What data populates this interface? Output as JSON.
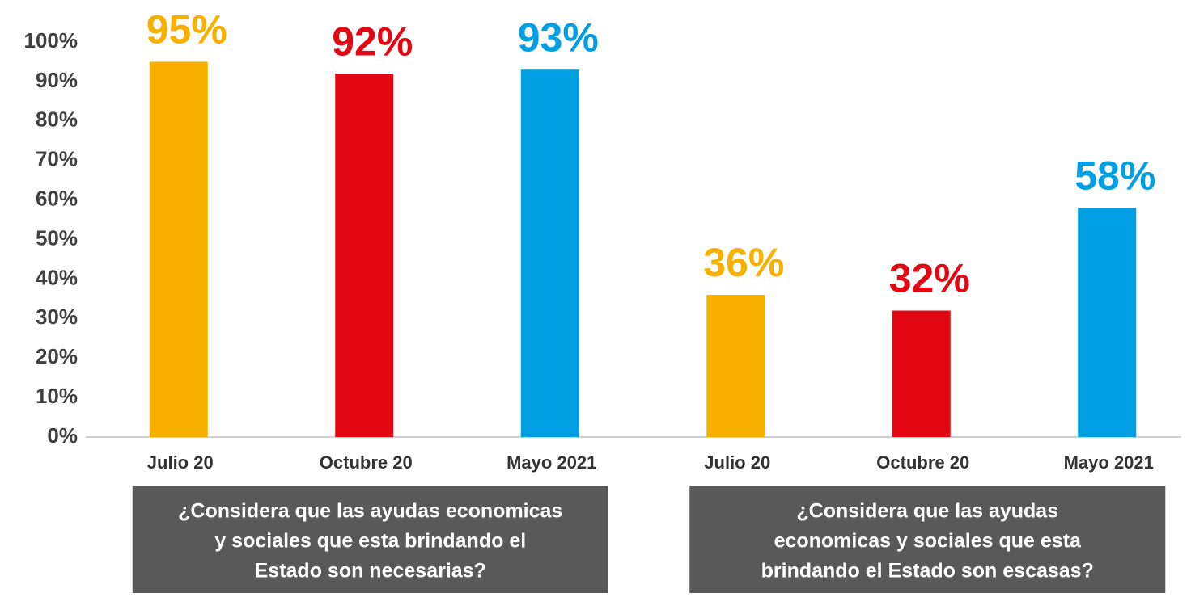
{
  "chart_data": {
    "type": "bar",
    "categories": [
      "Julio 20",
      "Octubre 20",
      "Mayo 2021",
      "Julio 20",
      "Octubre 20",
      "Mayo 2021"
    ],
    "values": [
      95,
      92,
      93,
      36,
      32,
      58
    ],
    "value_labels": [
      "95%",
      "92%",
      "93%",
      "36%",
      "32%",
      "58%"
    ],
    "colors": [
      "#f8b000",
      "#e30613",
      "#009fe3",
      "#f8b000",
      "#e30613",
      "#009fe3"
    ],
    "ylim": [
      0,
      100
    ],
    "yticks": [
      {
        "value": 0,
        "label": "0%"
      },
      {
        "value": 10,
        "label": "10%"
      },
      {
        "value": 20,
        "label": "20%"
      },
      {
        "value": 30,
        "label": "30%"
      },
      {
        "value": 40,
        "label": "40%"
      },
      {
        "value": 50,
        "label": "50%"
      },
      {
        "value": 60,
        "label": "60%"
      },
      {
        "value": 70,
        "label": "70%"
      },
      {
        "value": 80,
        "label": "80%"
      },
      {
        "value": 90,
        "label": "90%"
      },
      {
        "value": 100,
        "label": "100%"
      }
    ],
    "grid": false,
    "group_labels": [
      [
        "¿Considera que las ayudas economicas",
        "y sociales que esta brindando el",
        "Estado son necesarias?"
      ],
      [
        "¿Considera que las ayudas",
        "economicas y sociales que esta",
        "brindando el Estado son escasas?"
      ]
    ]
  }
}
